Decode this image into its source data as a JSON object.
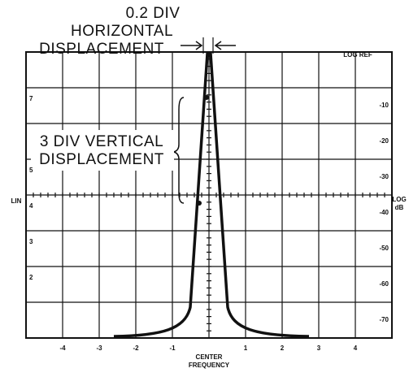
{
  "header": {
    "lines": [
      "0.2 DIV",
      "HORIZONTAL",
      "DISPLACEMENT"
    ]
  },
  "log_ref": "LOG REF",
  "vertical_note": {
    "lines": [
      "3 DIV VERTICAL",
      "DISPLACEMENT"
    ]
  },
  "left_axis": {
    "title": "LIN",
    "labels": [
      "7",
      "5",
      "4",
      "3",
      "2"
    ]
  },
  "right_axis": {
    "title": [
      "LOG",
      "dB"
    ],
    "labels": [
      "-10",
      "-20",
      "-30",
      "-40",
      "-50",
      "-60",
      "-70"
    ]
  },
  "bottom_axis": {
    "labels": [
      "-4",
      "-3",
      "-2",
      "-1",
      "1",
      "2",
      "3",
      "4"
    ],
    "center": [
      "CENTER",
      "FREQUENCY"
    ]
  }
}
